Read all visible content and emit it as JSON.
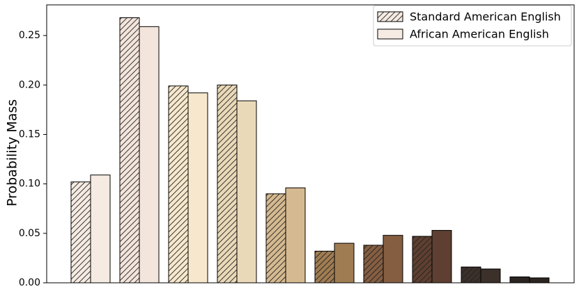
{
  "chart_data": {
    "type": "grouped-bar",
    "y_label": "Probability Mass",
    "categories": [
      null,
      null,
      null,
      null,
      null,
      null,
      null,
      null,
      null,
      null
    ],
    "colors": [
      "#f5ebe2",
      "#f3e5db",
      "#f7e8cd",
      "#ead9b8",
      "#d5b990",
      "#a07c52",
      "#855e42",
      "#5e3f31",
      "#3b302a",
      "#2b2521"
    ],
    "series": [
      {
        "name": "Standard American English",
        "hatch": true,
        "values": [
          0.102,
          0.268,
          0.199,
          0.2,
          0.09,
          0.032,
          0.038,
          0.047,
          0.016,
          0.006
        ]
      },
      {
        "name": "African American English",
        "hatch": false,
        "values": [
          0.109,
          0.259,
          0.192,
          0.184,
          0.096,
          0.04,
          0.048,
          0.053,
          0.014,
          0.005
        ]
      }
    ],
    "ylim": [
      0,
      0.281
    ],
    "yticks": [
      {
        "value": 0,
        "label": "0.00"
      },
      {
        "value": 0.05,
        "label": "0.05"
      },
      {
        "value": 0.1,
        "label": "0.10"
      },
      {
        "value": 0.15,
        "label": "0.15"
      },
      {
        "value": 0.2,
        "label": "0.20"
      },
      {
        "value": 0.25,
        "label": "0.25"
      }
    ],
    "legend": "upper right"
  }
}
